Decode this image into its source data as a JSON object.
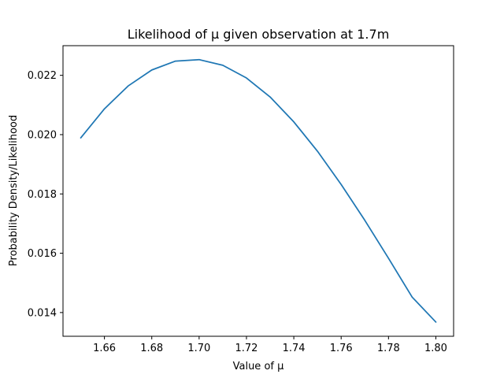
{
  "chart_data": {
    "type": "line",
    "title": "Likelihood of μ given observation at 1.7m",
    "xlabel": "Value of μ",
    "ylabel": "Probability Density/Likelihood",
    "xlim": [
      1.6425,
      1.8075
    ],
    "ylim": [
      0.0132,
      0.023
    ],
    "x_ticks": [
      1.66,
      1.68,
      1.7,
      1.72,
      1.74,
      1.76,
      1.78,
      1.8
    ],
    "x_tick_labels": [
      "1.66",
      "1.68",
      "1.70",
      "1.72",
      "1.74",
      "1.76",
      "1.78",
      "1.80"
    ],
    "y_ticks": [
      0.014,
      0.016,
      0.018,
      0.02,
      0.022
    ],
    "y_tick_labels": [
      "0.014",
      "0.016",
      "0.018",
      "0.020",
      "0.022"
    ],
    "grid": false,
    "series": [
      {
        "color": "#1f77b4",
        "x": [
          1.65,
          1.66,
          1.67,
          1.68,
          1.69,
          1.7,
          1.71,
          1.72,
          1.73,
          1.74,
          1.75,
          1.76,
          1.77,
          1.78,
          1.79,
          1.8
        ],
        "values": [
          0.01989,
          0.02087,
          0.02164,
          0.02218,
          0.02248,
          0.02253,
          0.02234,
          0.02191,
          0.02127,
          0.02043,
          0.01944,
          0.01832,
          0.01711,
          0.01583,
          0.01452,
          0.01368
        ]
      }
    ]
  }
}
